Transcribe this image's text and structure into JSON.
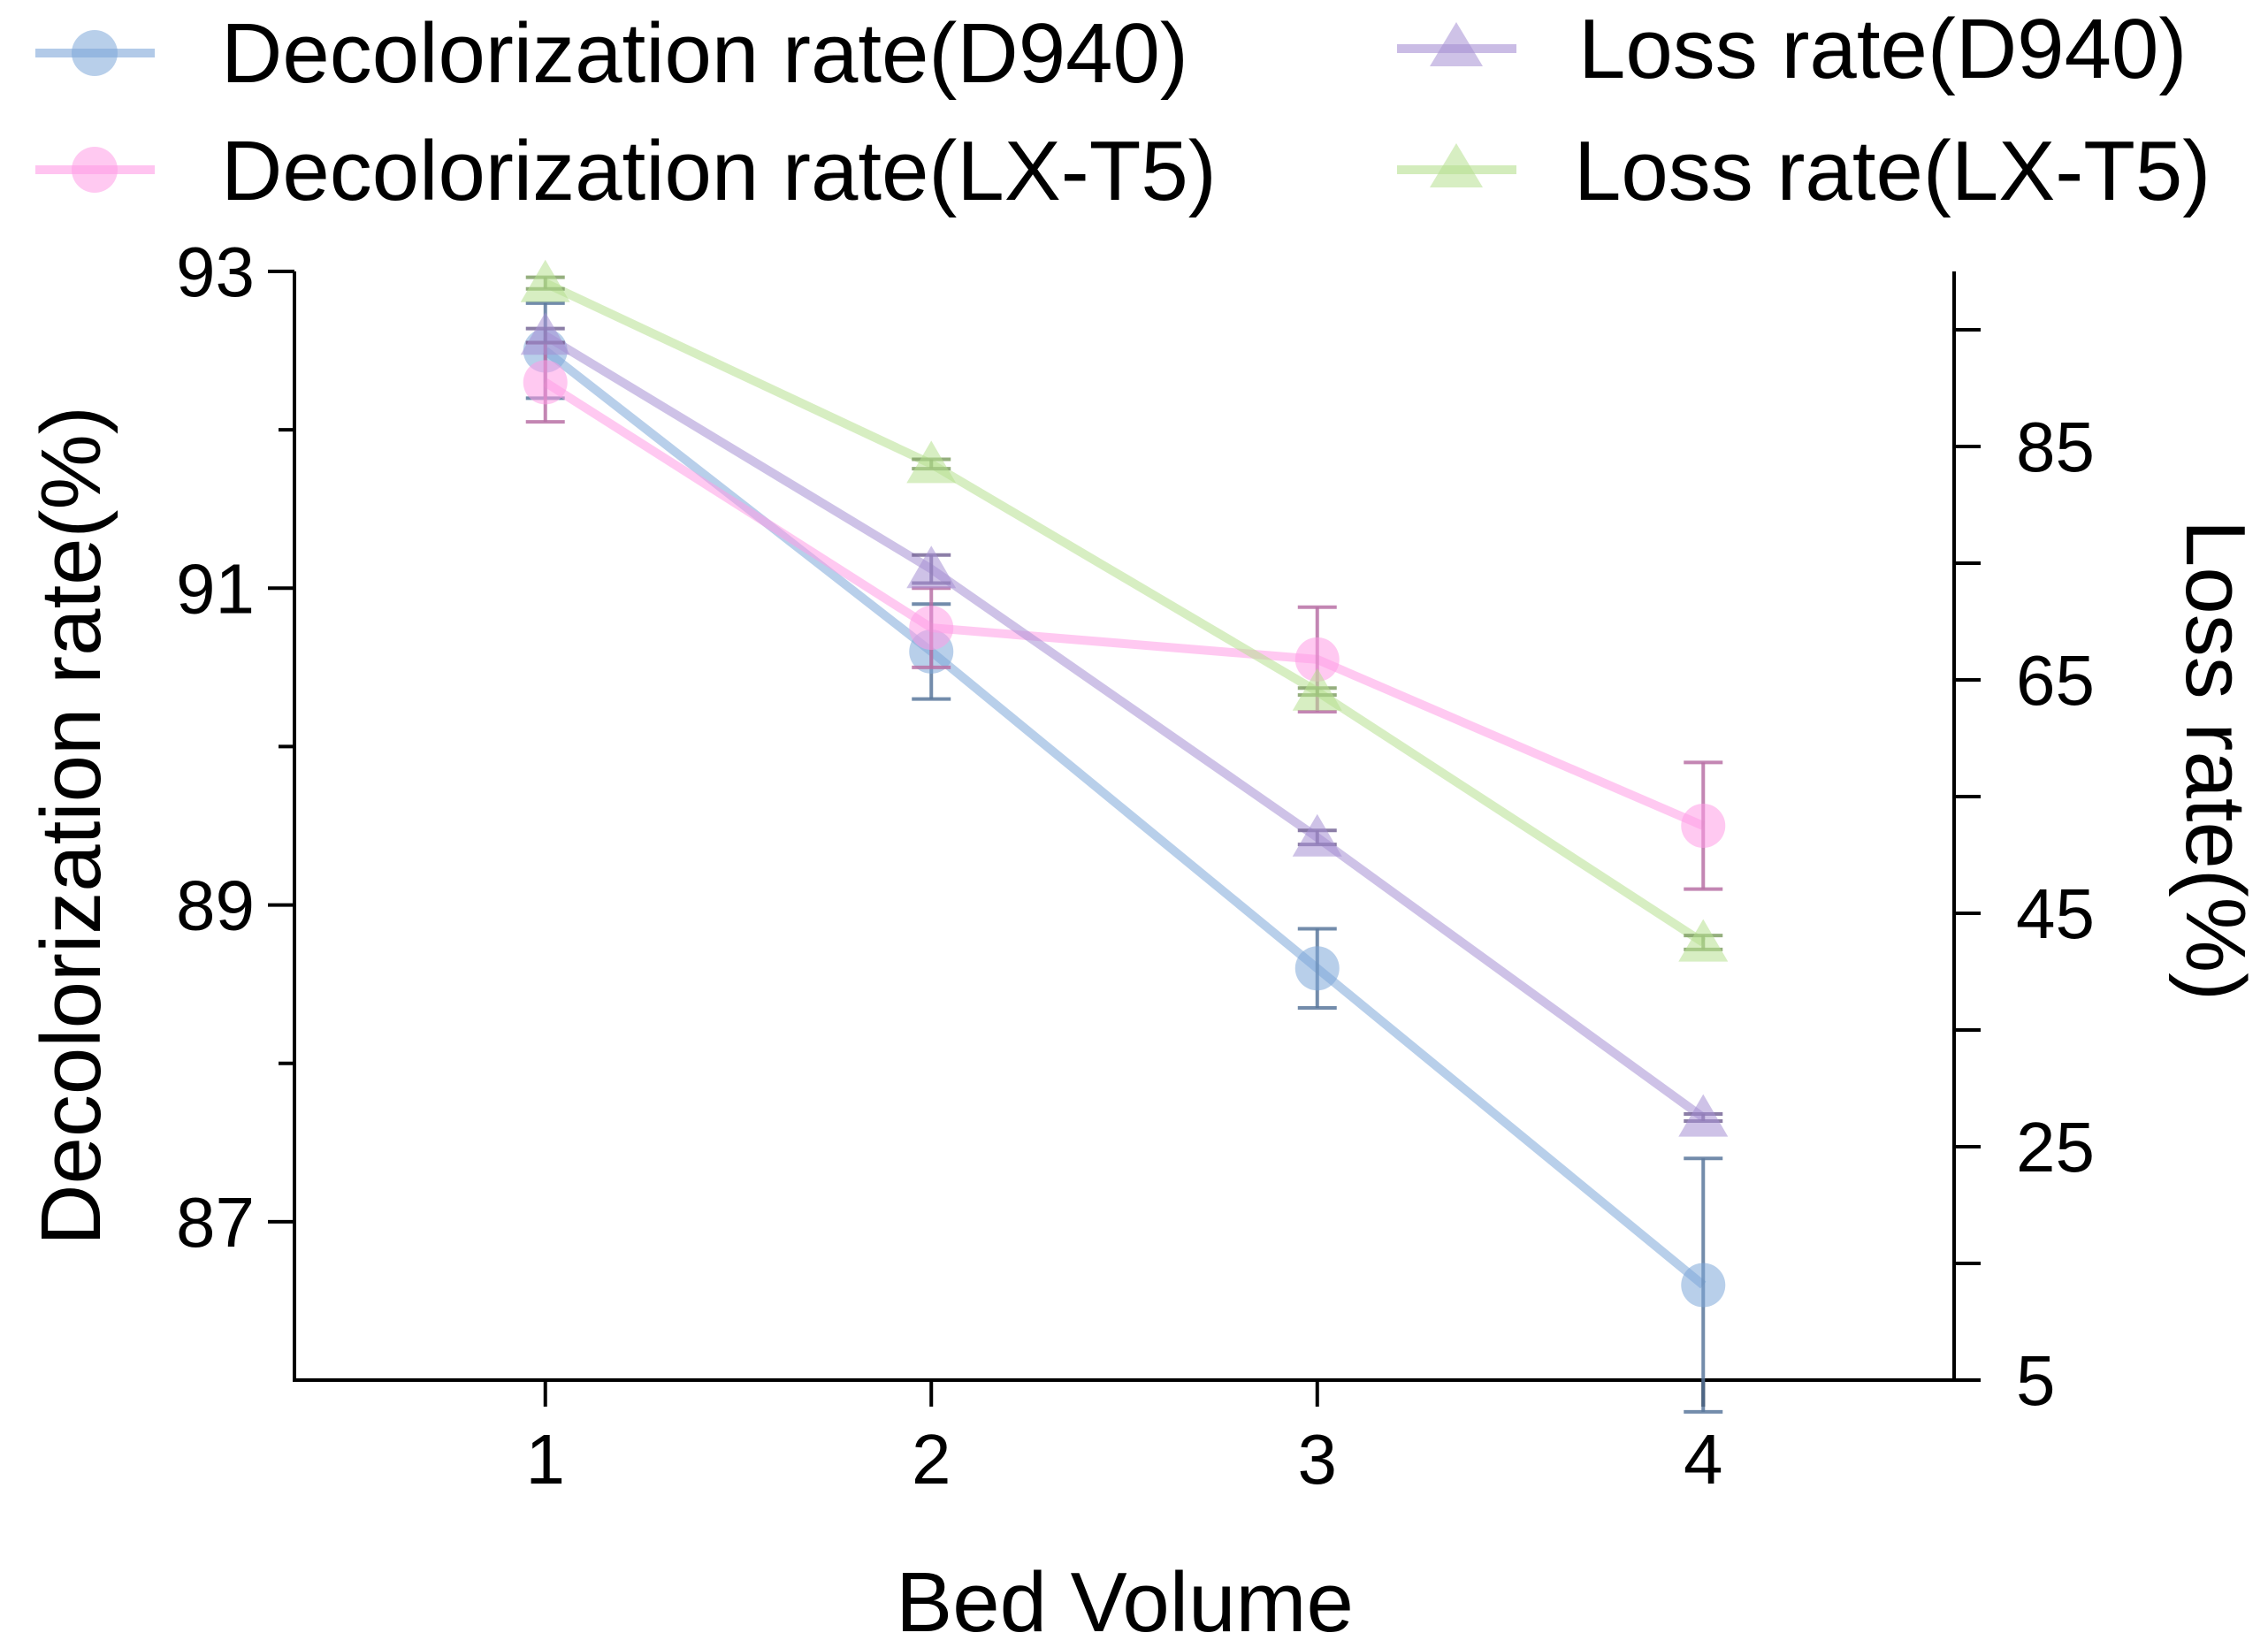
{
  "chart_data": {
    "type": "line",
    "title": "",
    "xlabel": "Bed Volume",
    "ylabel_left": "Decolorization rate(%)",
    "ylabel_right": "Loss rate(%)",
    "x": [
      1,
      2,
      3,
      4
    ],
    "x_ticks": [
      "1",
      "2",
      "3",
      "4"
    ],
    "xlim": [
      0.35,
      4.65
    ],
    "ylim_left": [
      86,
      93
    ],
    "yticks_left": [
      87,
      89,
      91,
      93
    ],
    "ylim_right": [
      5,
      100
    ],
    "yticks_right_labeled": [
      5,
      25,
      45,
      65,
      85
    ],
    "yticks_right_minor": [
      15,
      35,
      55,
      75,
      95
    ],
    "legend_position": "top",
    "series": [
      {
        "name": "Decolorization rate(D940)",
        "axis": "left",
        "marker": "circle",
        "color": "#7ea7d8",
        "values": [
          92.5,
          90.6,
          88.6,
          86.6
        ],
        "errors": [
          0.3,
          0.3,
          0.25,
          0.8
        ]
      },
      {
        "name": "Decolorization rate(LX-T5)",
        "axis": "left",
        "marker": "circle",
        "color": "#ff9de6",
        "values": [
          92.3,
          90.75,
          90.55,
          89.5
        ],
        "errors": [
          0.25,
          0.25,
          0.33,
          0.4
        ]
      },
      {
        "name": "Loss rate(D940)",
        "axis": "right",
        "marker": "triangle",
        "color": "#a68fd3",
        "values": [
          94.5,
          74.5,
          51.5,
          27.5
        ],
        "errors": [
          0.6,
          1.2,
          0.6,
          0.3
        ]
      },
      {
        "name": "Loss rate(LX-T5)",
        "axis": "right",
        "marker": "triangle",
        "color": "#b6e08f",
        "values": [
          99.0,
          83.5,
          64.0,
          42.5
        ],
        "errors": [
          0.5,
          0.4,
          0.3,
          0.6
        ]
      }
    ]
  }
}
